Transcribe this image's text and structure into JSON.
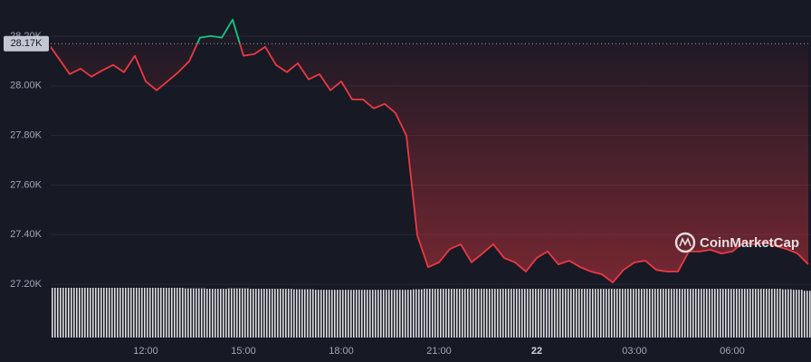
{
  "chart_data": {
    "type": "line",
    "x": [
      "09:00",
      "09:20",
      "09:40",
      "10:00",
      "10:20",
      "10:40",
      "11:00",
      "11:20",
      "11:40",
      "12:00",
      "12:20",
      "12:40",
      "13:00",
      "13:20",
      "13:40",
      "14:00",
      "14:20",
      "14:40",
      "15:00",
      "15:20",
      "15:40",
      "16:00",
      "16:20",
      "16:40",
      "17:00",
      "17:20",
      "17:40",
      "18:00",
      "18:20",
      "18:40",
      "19:00",
      "19:20",
      "19:40",
      "20:00",
      "20:20",
      "20:40",
      "21:00",
      "21:20",
      "21:40",
      "22:00",
      "22:20",
      "22:40",
      "23:00",
      "23:20",
      "23:40",
      "00:00",
      "00:20",
      "00:40",
      "01:00",
      "01:20",
      "01:40",
      "02:00",
      "02:20",
      "02:40",
      "03:00",
      "03:20",
      "03:40",
      "04:00",
      "04:20",
      "04:40",
      "05:00",
      "05:20",
      "05:40",
      "06:00",
      "06:20",
      "06:40",
      "07:00",
      "07:20",
      "07:40",
      "08:00",
      "08:20"
    ],
    "series": [
      {
        "values": [
          28172,
          28110,
          28047,
          28069,
          28037,
          28062,
          28084,
          28055,
          28121,
          28018,
          27982,
          28018,
          28055,
          28099,
          28194,
          28201,
          28194,
          28267,
          28121,
          28128,
          28157,
          28084,
          28055,
          28091,
          28026,
          28047,
          27982,
          28018,
          27945,
          27945,
          27909,
          27927,
          27890,
          27799,
          27397,
          27269,
          27288,
          27342,
          27361,
          27288,
          27324,
          27361,
          27306,
          27288,
          27251,
          27306,
          27332,
          27280,
          27295,
          27269,
          27251,
          27240,
          27207,
          27258,
          27288,
          27295,
          27258,
          27251,
          27251,
          27332,
          27332,
          27339,
          27324,
          27332,
          27368,
          27361,
          27368,
          27354,
          27342,
          27324,
          27280
        ],
        "color_up": "#16c784",
        "color_down": "#ea3943"
      },
      {
        "name": "volume",
        "color": "#ffffff",
        "values": [
          100,
          100,
          100,
          100,
          100,
          100,
          100,
          100,
          100,
          100,
          100,
          100,
          100,
          99,
          99,
          98,
          98,
          99,
          99,
          98,
          98,
          98,
          98,
          97,
          97,
          96,
          96,
          96,
          96,
          96,
          96,
          96,
          96,
          96,
          97,
          98,
          98,
          98,
          98,
          98,
          98,
          98,
          98,
          98,
          98,
          98,
          98,
          98,
          98,
          98,
          98,
          98,
          98,
          98,
          98,
          98,
          98,
          98,
          98,
          98,
          98,
          98,
          98,
          98,
          98,
          98,
          98,
          98,
          97,
          96,
          94
        ]
      }
    ],
    "reference": {
      "value": 28170,
      "label": "28.17K"
    },
    "ylim": [
      26985,
      28346
    ],
    "yticks": [
      {
        "value": 27200,
        "label": "27.20K"
      },
      {
        "value": 27400,
        "label": "27.40K"
      },
      {
        "value": 27600,
        "label": "27.60K"
      },
      {
        "value": 27800,
        "label": "27.80K"
      },
      {
        "value": 28000,
        "label": "28.00K"
      },
      {
        "value": 28200,
        "label": "28.20K"
      }
    ],
    "xticks": [
      "12:00",
      "15:00",
      "18:00",
      "21:00",
      {
        "value": "00:00",
        "label": "22"
      },
      "03:00",
      "06:00"
    ],
    "grid": true,
    "watermark": "CoinMarketCap"
  }
}
